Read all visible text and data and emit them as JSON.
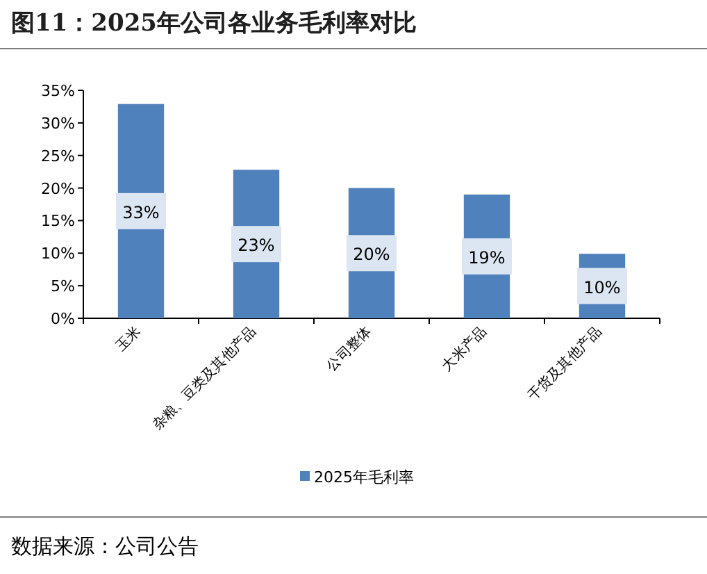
{
  "chart_data": {
    "type": "bar",
    "title": "图11：2025年公司各业务毛利率对比",
    "categories": [
      "玉米",
      "杂粮、豆类及其他产品",
      "公司整体",
      "大米产品",
      "干货及其他产品"
    ],
    "series": [
      {
        "name": "2025年毛利率",
        "color": "#4f81bd",
        "values": [
          32.9,
          22.8,
          20.0,
          19.0,
          9.9
        ],
        "value_labels": [
          "33%",
          "23%",
          "20%",
          "19%",
          "10%"
        ]
      }
    ],
    "ylim": [
      0,
      35
    ],
    "yticks": [
      {
        "value": 0,
        "label": "0%"
      },
      {
        "value": 5,
        "label": "5%"
      },
      {
        "value": 10,
        "label": "10%"
      },
      {
        "value": 15,
        "label": "15%"
      },
      {
        "value": 20,
        "label": "20%"
      },
      {
        "value": 25,
        "label": "25%"
      },
      {
        "value": 30,
        "label": "30%"
      },
      {
        "value": 35,
        "label": "35%"
      }
    ],
    "legend": "bottom",
    "grid": false,
    "annotations": [
      "数据来源：公司公告"
    ]
  }
}
